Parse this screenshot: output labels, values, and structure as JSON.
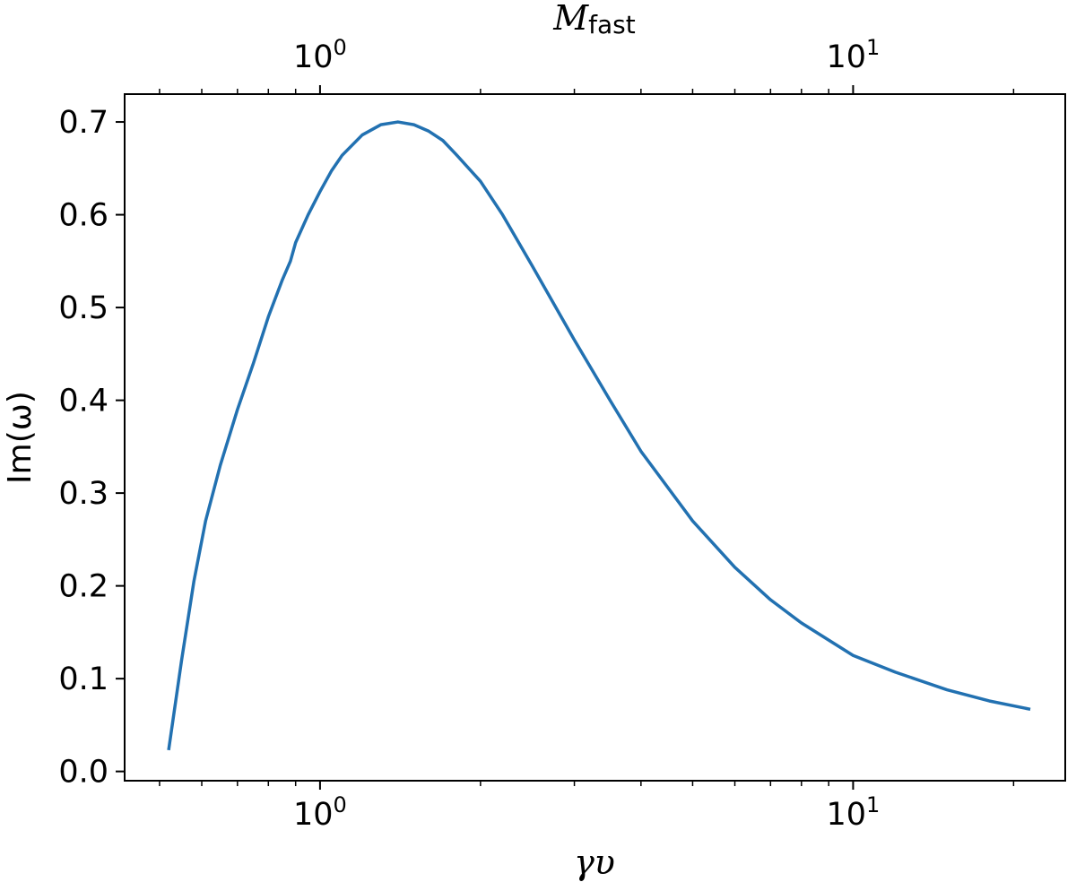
{
  "chart_data": {
    "type": "line",
    "xlabel": "γυ",
    "x2label": {
      "main": "M",
      "sub": "fast"
    },
    "ylabel": "Im(ω)",
    "xscale": "log",
    "x2scale": "log",
    "xlim": [
      0.43,
      25
    ],
    "ylim": [
      -0.01,
      0.73
    ],
    "yticks": [
      "0.0",
      "0.1",
      "0.2",
      "0.3",
      "0.4",
      "0.5",
      "0.6",
      "0.7"
    ],
    "xticks": [
      {
        "base": "10",
        "exp": "0",
        "value": 1
      },
      {
        "base": "10",
        "exp": "1",
        "value": 10
      }
    ],
    "x2ticks": [
      {
        "base": "10",
        "exp": "0",
        "value": 1
      },
      {
        "base": "10",
        "exp": "1",
        "value": 10
      }
    ],
    "grid": false,
    "series": [
      {
        "color": "#2271b1",
        "x": [
          0.52,
          0.55,
          0.58,
          0.61,
          0.65,
          0.7,
          0.75,
          0.8,
          0.85,
          0.88,
          0.9,
          0.95,
          1.0,
          1.05,
          1.1,
          1.2,
          1.3,
          1.4,
          1.5,
          1.6,
          1.7,
          1.8,
          2.0,
          2.2,
          2.5,
          3.0,
          3.5,
          4.0,
          5.0,
          6.0,
          7.0,
          8.0,
          10.0,
          12.0,
          15.0,
          18.0,
          21.5
        ],
        "y": [
          0.023,
          0.12,
          0.205,
          0.27,
          0.33,
          0.39,
          0.44,
          0.49,
          0.53,
          0.55,
          0.57,
          0.6,
          0.625,
          0.647,
          0.664,
          0.686,
          0.697,
          0.7,
          0.697,
          0.69,
          0.68,
          0.665,
          0.636,
          0.6,
          0.545,
          0.465,
          0.4,
          0.345,
          0.27,
          0.22,
          0.185,
          0.16,
          0.125,
          0.107,
          0.088,
          0.076,
          0.067
        ]
      }
    ]
  }
}
